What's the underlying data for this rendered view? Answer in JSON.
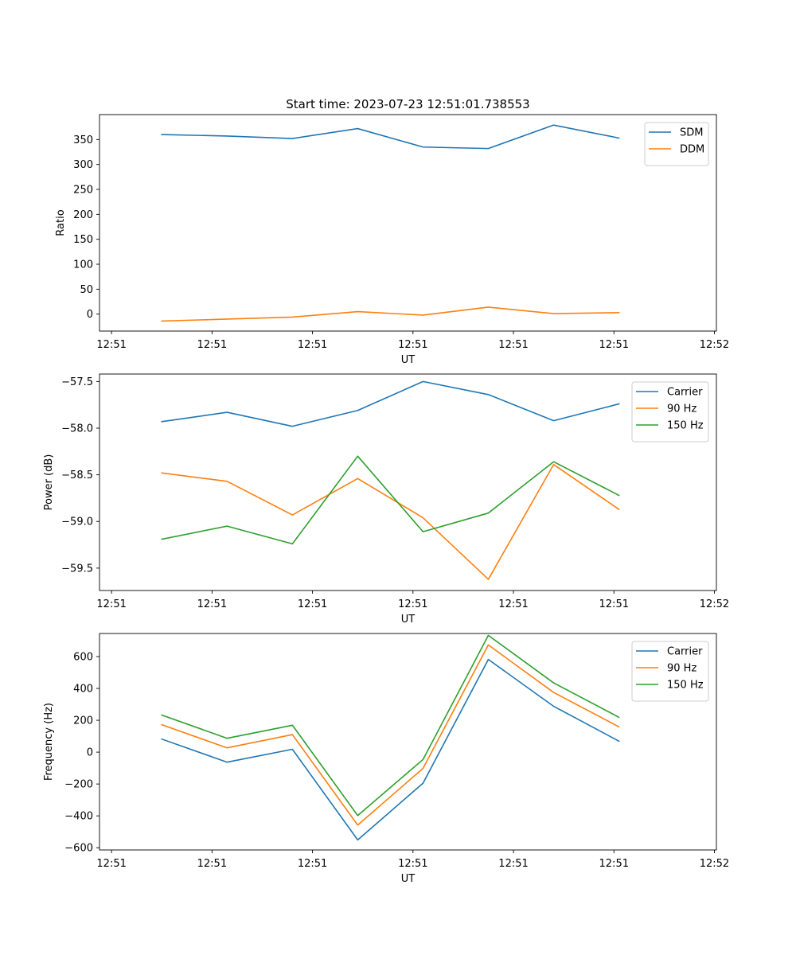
{
  "figure": {
    "title": "Start time: 2023-07-23 12:51:01.738553"
  },
  "chart_data": [
    {
      "type": "line",
      "title": "Start time: 2023-07-23 12:51:01.738553",
      "xlabel": "UT",
      "ylabel": "Ratio",
      "x": [
        0.5,
        1.15,
        1.8,
        2.45,
        3.1,
        3.75,
        4.4,
        5.05
      ],
      "xlim": [
        -0.12,
        6.02
      ],
      "xticks": [
        0,
        1,
        2,
        3,
        4,
        5,
        6
      ],
      "xtick_labels": [
        "12:51",
        "12:51",
        "12:51",
        "12:51",
        "12:51",
        "12:51",
        "12:52"
      ],
      "ylim": [
        -34,
        400
      ],
      "yticks": [
        0,
        50,
        100,
        150,
        200,
        250,
        300,
        350
      ],
      "ytick_labels": [
        "0",
        "50",
        "100",
        "150",
        "200",
        "250",
        "300",
        "350"
      ],
      "legend_position": "top-right",
      "series": [
        {
          "name": "SDM",
          "color": "#1f77b4",
          "values": [
            360,
            357,
            352,
            372,
            335,
            332,
            379,
            353
          ]
        },
        {
          "name": "DDM",
          "color": "#ff7f0e",
          "values": [
            -14,
            -10,
            -6,
            5,
            -2,
            14,
            1,
            3
          ]
        }
      ]
    },
    {
      "type": "line",
      "title": "",
      "xlabel": "UT",
      "ylabel": "Power (dB)",
      "x": [
        0.5,
        1.15,
        1.8,
        2.45,
        3.1,
        3.75,
        4.4,
        5.05
      ],
      "xlim": [
        -0.12,
        6.02
      ],
      "xticks": [
        0,
        1,
        2,
        3,
        4,
        5,
        6
      ],
      "xtick_labels": [
        "12:51",
        "12:51",
        "12:51",
        "12:51",
        "12:51",
        "12:51",
        "12:52"
      ],
      "ylim": [
        -59.74,
        -57.42
      ],
      "yticks": [
        -59.5,
        -59.0,
        -58.5,
        -58.0,
        -57.5
      ],
      "ytick_labels": [
        "−59.5",
        "−59.0",
        "−58.5",
        "−58.0",
        "−57.5"
      ],
      "legend_position": "top-right",
      "series": [
        {
          "name": "Carrier",
          "color": "#1f77b4",
          "values": [
            -57.93,
            -57.83,
            -57.98,
            -57.81,
            -57.5,
            -57.64,
            -57.92,
            -57.74
          ]
        },
        {
          "name": "90 Hz",
          "color": "#ff7f0e",
          "values": [
            -58.48,
            -58.57,
            -58.93,
            -58.54,
            -58.96,
            -59.62,
            -58.39,
            -58.87
          ]
        },
        {
          "name": "150 Hz",
          "color": "#2ca02c",
          "values": [
            -59.19,
            -59.05,
            -59.24,
            -58.3,
            -59.11,
            -58.91,
            -58.36,
            -58.72
          ]
        }
      ]
    },
    {
      "type": "line",
      "title": "",
      "xlabel": "UT",
      "ylabel": "Frequency (Hz)",
      "x": [
        0.5,
        1.15,
        1.8,
        2.45,
        3.1,
        3.75,
        4.4,
        5.05
      ],
      "xlim": [
        -0.12,
        6.02
      ],
      "xticks": [
        0,
        1,
        2,
        3,
        4,
        5,
        6
      ],
      "xtick_labels": [
        "12:51",
        "12:51",
        "12:51",
        "12:51",
        "12:51",
        "12:51",
        "12:52"
      ],
      "ylim": [
        -614,
        745
      ],
      "yticks": [
        -600,
        -400,
        -200,
        0,
        200,
        400,
        600
      ],
      "ytick_labels": [
        "−600",
        "−400",
        "−200",
        "0",
        "200",
        "400",
        "600"
      ],
      "legend_position": "top-right",
      "series": [
        {
          "name": "Carrier",
          "color": "#1f77b4",
          "values": [
            82,
            -63,
            18,
            -551,
            -195,
            582,
            288,
            69
          ]
        },
        {
          "name": "90 Hz",
          "color": "#ff7f0e",
          "values": [
            172,
            27,
            110,
            -458,
            -102,
            673,
            375,
            159
          ]
        },
        {
          "name": "150 Hz",
          "color": "#2ca02c",
          "values": [
            233,
            87,
            169,
            -398,
            -46,
            733,
            435,
            219
          ]
        }
      ]
    }
  ]
}
